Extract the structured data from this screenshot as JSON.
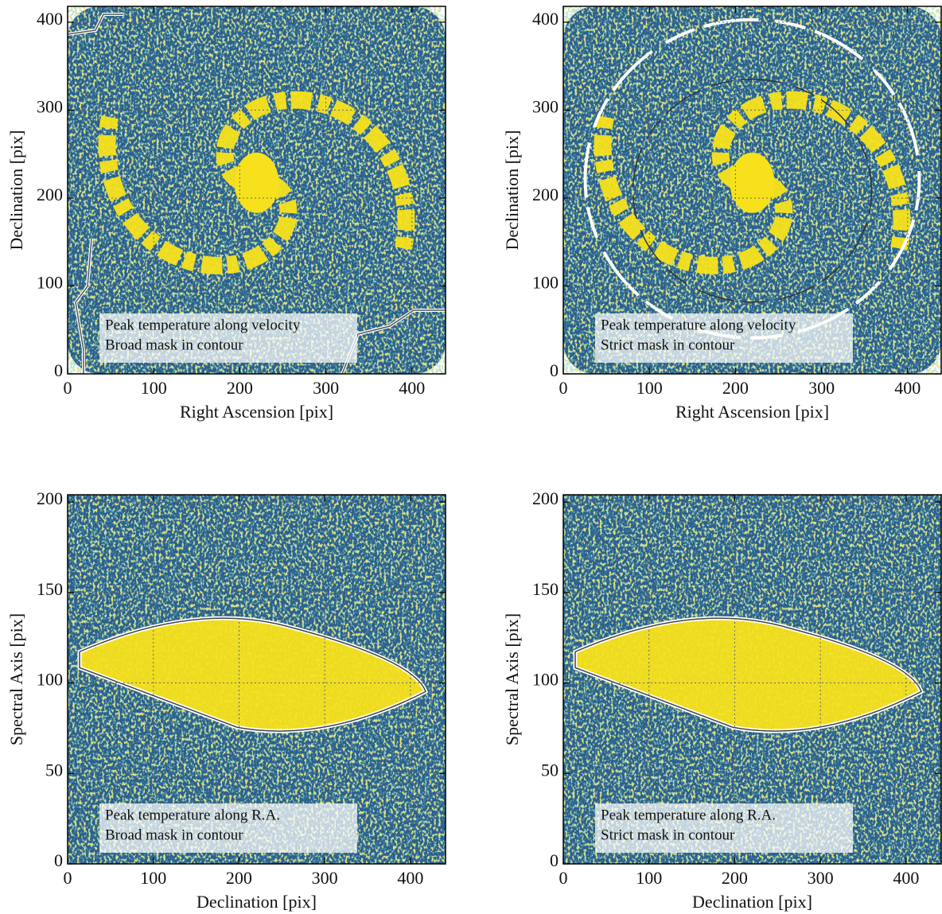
{
  "chart_data": [
    {
      "type": "image",
      "annotation": [
        "Peak temperature along velocity",
        "Broad mask in contour"
      ],
      "xlabel": "Right Ascension [pix]",
      "ylabel": "Declination [pix]",
      "xlim": [
        0,
        439
      ],
      "ylim": [
        0,
        418
      ],
      "xticks": [
        0,
        100,
        200,
        300,
        400
      ],
      "yticks": [
        0,
        100,
        200,
        300,
        400
      ],
      "grid": true
    },
    {
      "type": "image",
      "annotation": [
        "Peak temperature along velocity",
        "Strict mask in contour"
      ],
      "xlabel": "Right Ascension [pix]",
      "ylabel": "Declination [pix]",
      "xlim": [
        0,
        439
      ],
      "ylim": [
        0,
        418
      ],
      "xticks": [
        0,
        100,
        200,
        300,
        400
      ],
      "yticks": [
        0,
        100,
        200,
        300,
        400
      ],
      "grid": true
    },
    {
      "type": "image",
      "annotation": [
        "Peak temperature along R.A.",
        "Broad mask in contour"
      ],
      "xlabel": "Declination [pix]",
      "ylabel": "Spectral Axis [pix]",
      "xlim": [
        0,
        441
      ],
      "ylim": [
        0,
        204
      ],
      "xticks": [
        0,
        100,
        200,
        300,
        400
      ],
      "yticks": [
        0,
        50,
        100,
        150,
        200
      ],
      "grid": true
    },
    {
      "type": "image",
      "annotation": [
        "Peak temperature along R.A.",
        "Strict mask in contour"
      ],
      "xlabel": "Declination [pix]",
      "ylabel": "Spectral Axis [pix]",
      "xlim": [
        0,
        441
      ],
      "ylim": [
        0,
        204
      ],
      "xticks": [
        0,
        100,
        200,
        300,
        400
      ],
      "yticks": [
        0,
        50,
        100,
        150,
        200
      ],
      "grid": true
    }
  ]
}
